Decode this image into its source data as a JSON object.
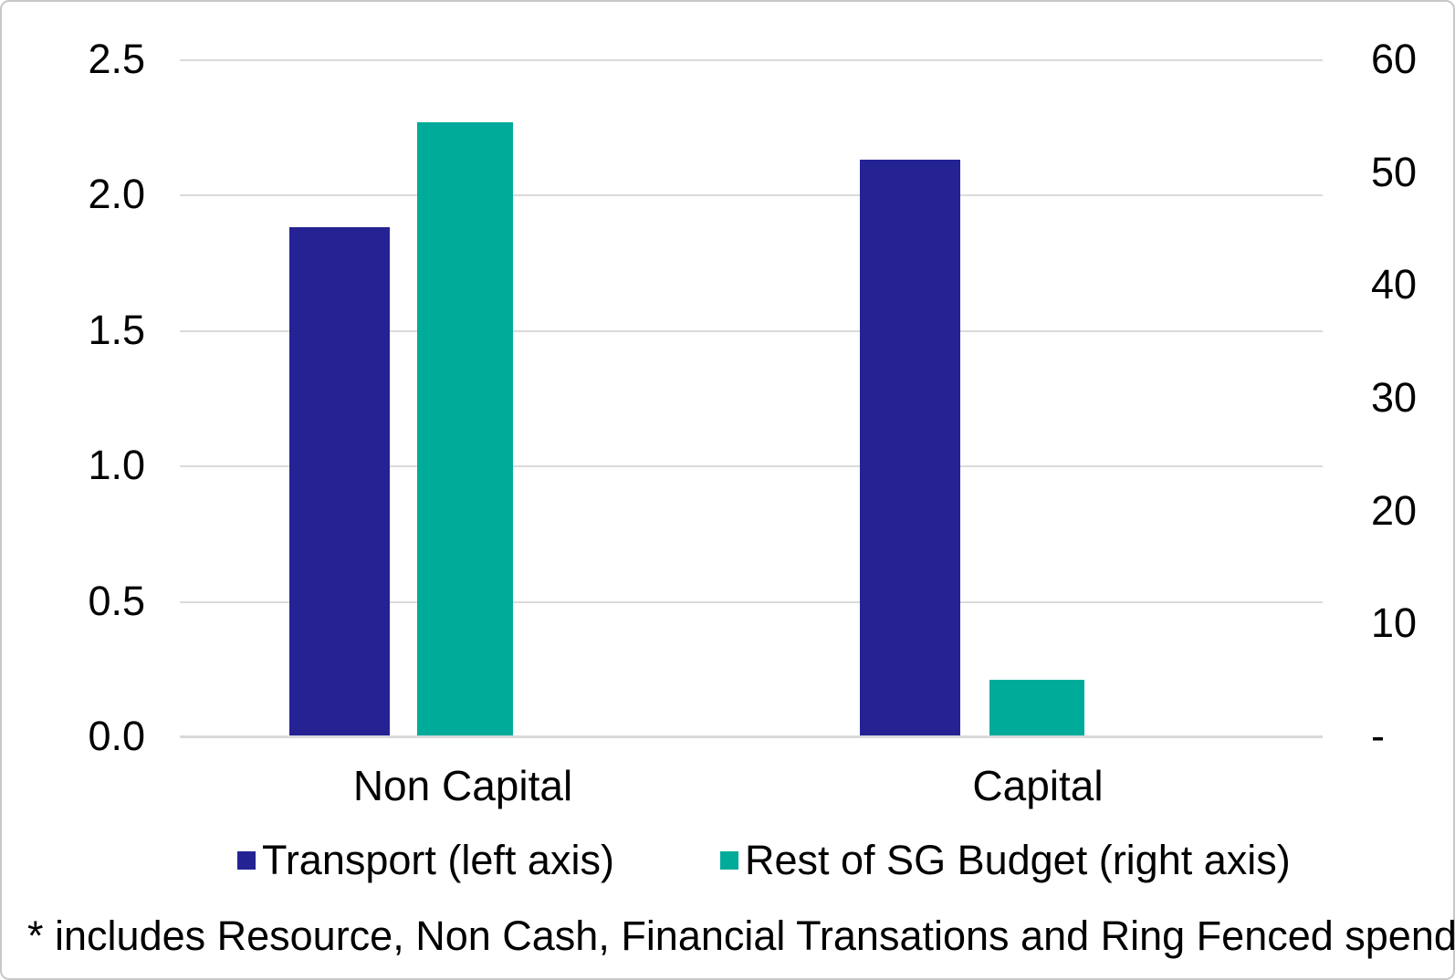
{
  "footnote": "* includes Resource, Non Cash, Financial Transations and Ring Fenced spend lines",
  "colors": {
    "transport_navy": "#252394",
    "rest_of_sg_teal": "#00AB9A",
    "gridline": "#DBDBDB",
    "axis_line": "#D9D9D9",
    "frame_border": "#C8C8C8",
    "text": "#000000"
  },
  "chart_data": {
    "type": "bar",
    "title": "",
    "categories": [
      "Non Capital",
      "Capital"
    ],
    "series": [
      {
        "name": "Transport (left axis)",
        "axis": "left",
        "color": "#252394",
        "values": [
          1.88,
          2.13
        ]
      },
      {
        "name": "Rest of SG Budget (right axis)",
        "axis": "right",
        "color": "#00AB9A",
        "values": [
          54.4,
          5.0
        ]
      }
    ],
    "left_axis": {
      "min": 0,
      "max": 2.5,
      "tick_labels": [
        "2.5",
        "2.0",
        "1.5",
        "1.0",
        "0.5",
        "0.0"
      ]
    },
    "right_axis": {
      "min": 0,
      "max": 60,
      "tick_labels": [
        "60",
        "50",
        "40",
        "30",
        "20",
        "10",
        "-"
      ]
    },
    "grid": true,
    "gridlines_follow": "left_axis",
    "legend_position": "bottom"
  }
}
